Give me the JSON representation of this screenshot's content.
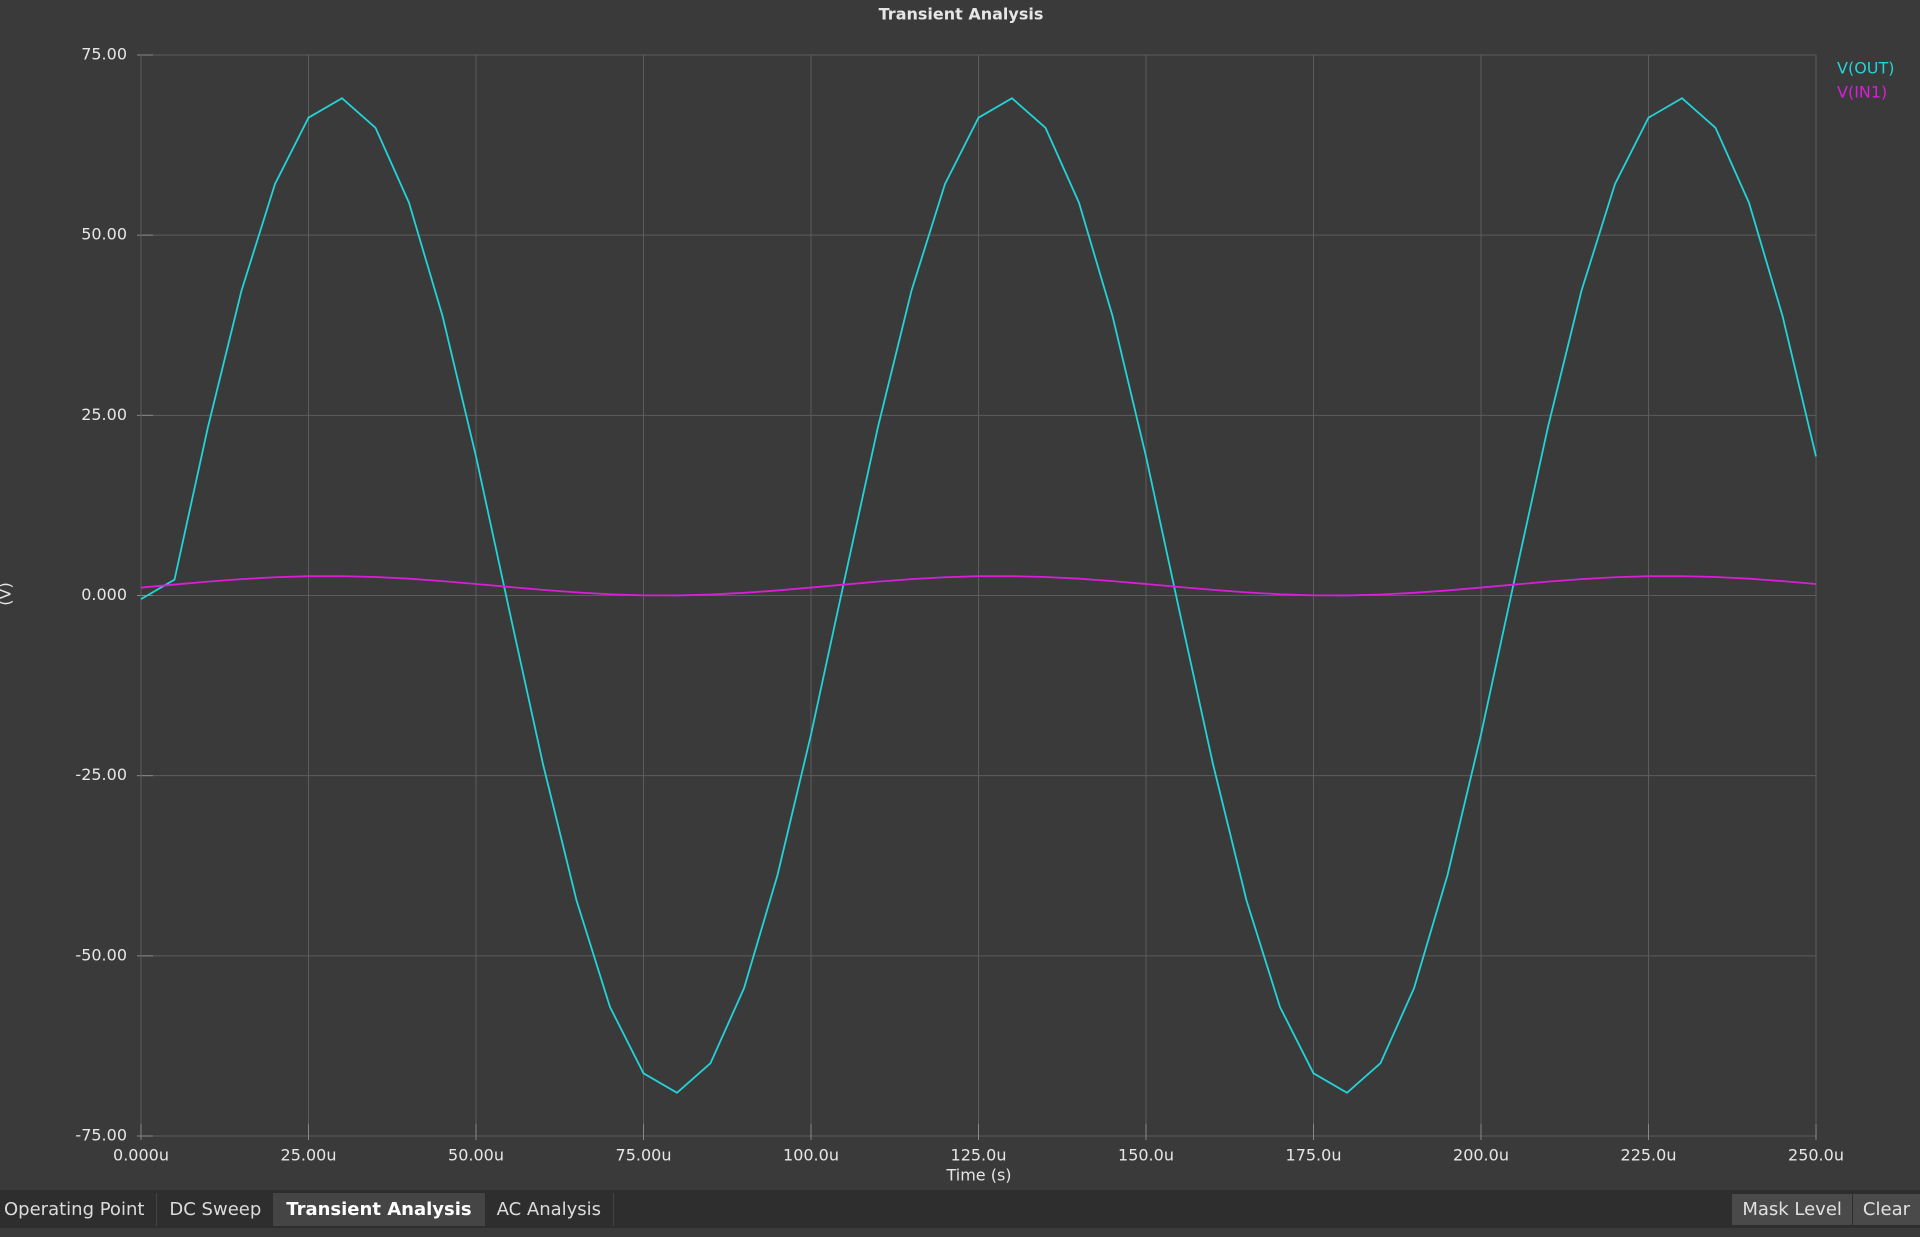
{
  "chart_data": {
    "type": "line",
    "title": "Transient Analysis",
    "xlabel": "Time (s)",
    "ylabel": "(V)",
    "x": [
      0,
      5e-06,
      1e-05,
      1.5e-05,
      2e-05,
      2.5e-05,
      3e-05,
      3.5e-05,
      4e-05,
      4.5e-05,
      5e-05,
      5.5e-05,
      6e-05,
      6.5e-05,
      7e-05,
      7.5e-05,
      8e-05,
      8.5e-05,
      9e-05,
      9.5e-05,
      0.0001,
      0.000105,
      0.00011,
      0.000115,
      0.00012,
      0.000125,
      0.00013,
      0.000135,
      0.00014,
      0.000145,
      0.00015,
      0.000155,
      0.00016,
      0.000165,
      0.00017,
      0.000175,
      0.00018,
      0.000185,
      0.00019,
      0.000195,
      0.0002,
      0.000205,
      0.00021,
      0.000215,
      0.00022,
      0.000225,
      0.00023,
      0.000235,
      0.00024,
      0.000245,
      0.00025
    ],
    "series": [
      {
        "name": "V(OUT)",
        "color": "#22d3d8",
        "values": [
          -0.5,
          2.2,
          23.4,
          42.3,
          57.1,
          66.3,
          69.0,
          64.9,
          54.5,
          38.8,
          19.3,
          -2.2,
          -23.4,
          -42.3,
          -57.1,
          -66.3,
          -69.0,
          -64.9,
          -54.5,
          -38.8,
          -19.3,
          2.2,
          23.4,
          42.3,
          57.1,
          66.3,
          69.0,
          64.9,
          54.5,
          38.8,
          19.3,
          -2.2,
          -23.4,
          -42.3,
          -57.1,
          -66.3,
          -69.0,
          -64.9,
          -54.5,
          -38.8,
          -19.3,
          2.2,
          23.4,
          42.3,
          57.1,
          66.3,
          69.0,
          64.9,
          54.5,
          38.8,
          19.3
        ]
      },
      {
        "name": "V(IN1)",
        "color": "#d81fd8",
        "values": [
          1.1,
          1.52,
          1.92,
          2.27,
          2.53,
          2.68,
          2.69,
          2.57,
          2.33,
          2.0,
          1.6,
          1.18,
          0.78,
          0.43,
          0.17,
          0.02,
          0.01,
          0.13,
          0.37,
          0.7,
          1.1,
          1.52,
          1.92,
          2.27,
          2.53,
          2.68,
          2.69,
          2.57,
          2.33,
          2.0,
          1.6,
          1.18,
          0.78,
          0.43,
          0.17,
          0.02,
          0.01,
          0.13,
          0.37,
          0.7,
          1.1,
          1.52,
          1.92,
          2.27,
          2.53,
          2.68,
          2.69,
          2.57,
          2.33,
          2.0,
          1.6
        ]
      }
    ],
    "xlim": [
      0,
      0.00025
    ],
    "xticks": [
      {
        "value": 0,
        "label": "0.000u"
      },
      {
        "value": 2.5e-05,
        "label": "25.00u"
      },
      {
        "value": 5e-05,
        "label": "50.00u"
      },
      {
        "value": 7.5e-05,
        "label": "75.00u"
      },
      {
        "value": 0.0001,
        "label": "100.0u"
      },
      {
        "value": 0.000125,
        "label": "125.0u"
      },
      {
        "value": 0.00015,
        "label": "150.0u"
      },
      {
        "value": 0.000175,
        "label": "175.0u"
      },
      {
        "value": 0.0002,
        "label": "200.0u"
      },
      {
        "value": 0.000225,
        "label": "225.0u"
      },
      {
        "value": 0.00025,
        "label": "250.0u"
      }
    ],
    "ylim": [
      -75,
      75
    ],
    "yticks": [
      {
        "value": -75,
        "label": "-75.00"
      },
      {
        "value": -50,
        "label": "-50.00"
      },
      {
        "value": -25,
        "label": "-25.00"
      },
      {
        "value": 0,
        "label": "0.000"
      },
      {
        "value": 25,
        "label": "25.00"
      },
      {
        "value": 50,
        "label": "50.00"
      },
      {
        "value": 75,
        "label": "75.00"
      }
    ],
    "grid": true,
    "legend": "upper right"
  },
  "tabs": [
    "Operating Point",
    "DC Sweep",
    "Transient Analysis",
    "AC Analysis"
  ],
  "active_tab": 2,
  "buttons": [
    "Mask Level",
    "Clear"
  ]
}
